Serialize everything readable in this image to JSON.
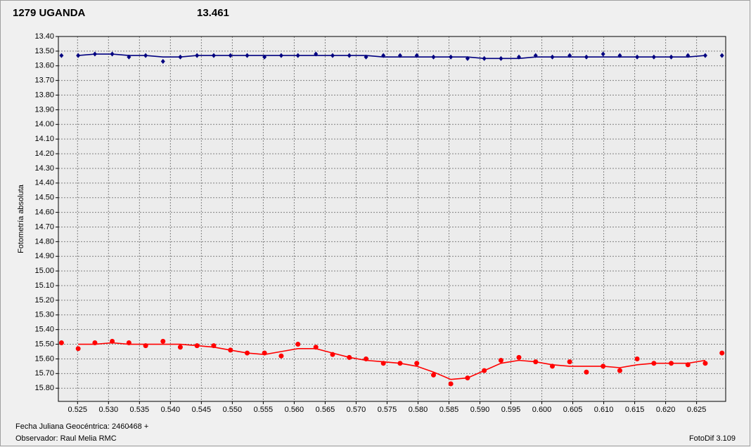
{
  "chart_data": {
    "type": "scatter-fit",
    "title": "1279 UGANDA",
    "subtitle": "13.461",
    "y_label": "Fotometría absoluta",
    "x_note": "Fecha Juliana Geocéntrica: 2460468 +",
    "observer": "Observador: Raul Melia RMC",
    "software": "FotoDif 3.109",
    "y_inverted": true,
    "grid": true,
    "xlim": [
      0.5219,
      0.6297
    ],
    "ylim": [
      13.4,
      15.89
    ],
    "xticks": [
      {
        "value": 0.525,
        "label": "0.525"
      },
      {
        "value": 0.53,
        "label": "0.530"
      },
      {
        "value": 0.535,
        "label": "0.535"
      },
      {
        "value": 0.54,
        "label": "0.540"
      },
      {
        "value": 0.545,
        "label": "0.545"
      },
      {
        "value": 0.55,
        "label": "0.550"
      },
      {
        "value": 0.555,
        "label": "0.555"
      },
      {
        "value": 0.56,
        "label": "0.560"
      },
      {
        "value": 0.565,
        "label": "0.565"
      },
      {
        "value": 0.57,
        "label": "0.570"
      },
      {
        "value": 0.575,
        "label": "0.575"
      },
      {
        "value": 0.58,
        "label": "0.580"
      },
      {
        "value": 0.585,
        "label": "0.585"
      },
      {
        "value": 0.59,
        "label": "0.590"
      },
      {
        "value": 0.595,
        "label": "0.595"
      },
      {
        "value": 0.6,
        "label": "0.600"
      },
      {
        "value": 0.605,
        "label": "0.605"
      },
      {
        "value": 0.61,
        "label": "0.610"
      },
      {
        "value": 0.615,
        "label": "0.615"
      },
      {
        "value": 0.62,
        "label": "0.620"
      },
      {
        "value": 0.625,
        "label": "0.625"
      }
    ],
    "yticks": [
      {
        "value": 13.4,
        "label": "13.40"
      },
      {
        "value": 13.5,
        "label": "13.50"
      },
      {
        "value": 13.6,
        "label": "13.60"
      },
      {
        "value": 13.7,
        "label": "13.70"
      },
      {
        "value": 13.8,
        "label": "13.80"
      },
      {
        "value": 13.9,
        "label": "13.90"
      },
      {
        "value": 14.0,
        "label": "14.00"
      },
      {
        "value": 14.1,
        "label": "14.10"
      },
      {
        "value": 14.2,
        "label": "14.20"
      },
      {
        "value": 14.3,
        "label": "14.30"
      },
      {
        "value": 14.4,
        "label": "14.40"
      },
      {
        "value": 14.5,
        "label": "14.50"
      },
      {
        "value": 14.6,
        "label": "14.60"
      },
      {
        "value": 14.7,
        "label": "14.70"
      },
      {
        "value": 14.8,
        "label": "14.80"
      },
      {
        "value": 14.9,
        "label": "14.90"
      },
      {
        "value": 15.0,
        "label": "15.00"
      },
      {
        "value": 15.1,
        "label": "15.10"
      },
      {
        "value": 15.2,
        "label": "15.20"
      },
      {
        "value": 15.3,
        "label": "15.30"
      },
      {
        "value": 15.4,
        "label": "15.40"
      },
      {
        "value": 15.5,
        "label": "15.50"
      },
      {
        "value": 15.6,
        "label": "15.60"
      },
      {
        "value": 15.7,
        "label": "15.70"
      },
      {
        "value": 15.8,
        "label": "15.80"
      }
    ],
    "x": [
      0.5224,
      0.5251,
      0.5278,
      0.5306,
      0.5333,
      0.536,
      0.5388,
      0.5416,
      0.5443,
      0.547,
      0.5497,
      0.5524,
      0.5552,
      0.5579,
      0.5606,
      0.5635,
      0.5662,
      0.5689,
      0.5716,
      0.5744,
      0.5771,
      0.5798,
      0.5825,
      0.5853,
      0.588,
      0.5907,
      0.5934,
      0.5963,
      0.599,
      0.6017,
      0.6045,
      0.6072,
      0.6099,
      0.6126,
      0.6154,
      0.6181,
      0.6209,
      0.6236,
      0.6264,
      0.6291
    ],
    "series": [
      {
        "color": "#000080",
        "marker": "diamond",
        "values": [
          13.53,
          13.53,
          13.52,
          13.52,
          13.54,
          13.53,
          13.57,
          13.54,
          13.53,
          13.53,
          13.53,
          13.53,
          13.54,
          13.53,
          13.53,
          13.52,
          13.53,
          13.53,
          13.54,
          13.53,
          13.53,
          13.53,
          13.54,
          13.54,
          13.55,
          13.55,
          13.55,
          13.54,
          13.53,
          13.54,
          13.53,
          13.54,
          13.52,
          13.53,
          13.54,
          13.54,
          13.54,
          13.53,
          13.53,
          13.53
        ]
      },
      {
        "color": "#ff0000",
        "marker": "circle",
        "values": [
          15.49,
          15.53,
          15.49,
          15.48,
          15.49,
          15.51,
          15.48,
          15.52,
          15.51,
          15.51,
          15.54,
          15.56,
          15.56,
          15.58,
          15.5,
          15.52,
          15.57,
          15.59,
          15.6,
          15.63,
          15.63,
          15.63,
          15.71,
          15.77,
          15.73,
          15.68,
          15.61,
          15.59,
          15.62,
          15.65,
          15.62,
          15.69,
          15.65,
          15.68,
          15.6,
          15.63,
          15.63,
          15.64,
          15.63,
          15.56
        ]
      },
      {
        "color": "#000080",
        "marker": "none",
        "x": [
          0.5251,
          0.5278,
          0.5306,
          0.5333,
          0.536,
          0.5388,
          0.5416,
          0.5443,
          0.547,
          0.5497,
          0.5524,
          0.5552,
          0.5579,
          0.5606,
          0.5635,
          0.5662,
          0.5689,
          0.5716,
          0.5744,
          0.5771,
          0.5798,
          0.5825,
          0.5853,
          0.588,
          0.5907,
          0.5934,
          0.5963,
          0.599,
          0.6017,
          0.6045,
          0.6072,
          0.6099,
          0.6126,
          0.6154,
          0.6181,
          0.6209,
          0.6236,
          0.6264
        ],
        "values": [
          13.53,
          13.52,
          13.52,
          13.53,
          13.53,
          13.54,
          13.54,
          13.53,
          13.53,
          13.53,
          13.53,
          13.53,
          13.53,
          13.53,
          13.53,
          13.53,
          13.53,
          13.53,
          13.54,
          13.54,
          13.54,
          13.54,
          13.54,
          13.54,
          13.55,
          13.55,
          13.55,
          13.54,
          13.54,
          13.54,
          13.54,
          13.54,
          13.54,
          13.54,
          13.54,
          13.54,
          13.54,
          13.53
        ]
      },
      {
        "color": "#ff0000",
        "marker": "none",
        "x": [
          0.5251,
          0.5278,
          0.5306,
          0.5333,
          0.536,
          0.5388,
          0.5416,
          0.5443,
          0.547,
          0.5497,
          0.5524,
          0.5552,
          0.5579,
          0.5606,
          0.5635,
          0.5662,
          0.5689,
          0.5716,
          0.5744,
          0.5771,
          0.5798,
          0.5825,
          0.5853,
          0.588,
          0.5907,
          0.5934,
          0.5963,
          0.599,
          0.6017,
          0.6045,
          0.6072,
          0.6099,
          0.6126,
          0.6154,
          0.6181,
          0.6209,
          0.6236,
          0.6264
        ],
        "values": [
          15.5,
          15.5,
          15.49,
          15.5,
          15.5,
          15.5,
          15.5,
          15.51,
          15.52,
          15.54,
          15.56,
          15.57,
          15.55,
          15.53,
          15.53,
          15.56,
          15.59,
          15.61,
          15.62,
          15.63,
          15.65,
          15.69,
          15.74,
          15.73,
          15.68,
          15.63,
          15.61,
          15.62,
          15.64,
          15.65,
          15.65,
          15.65,
          15.66,
          15.64,
          15.63,
          15.63,
          15.63,
          15.61
        ]
      }
    ]
  }
}
